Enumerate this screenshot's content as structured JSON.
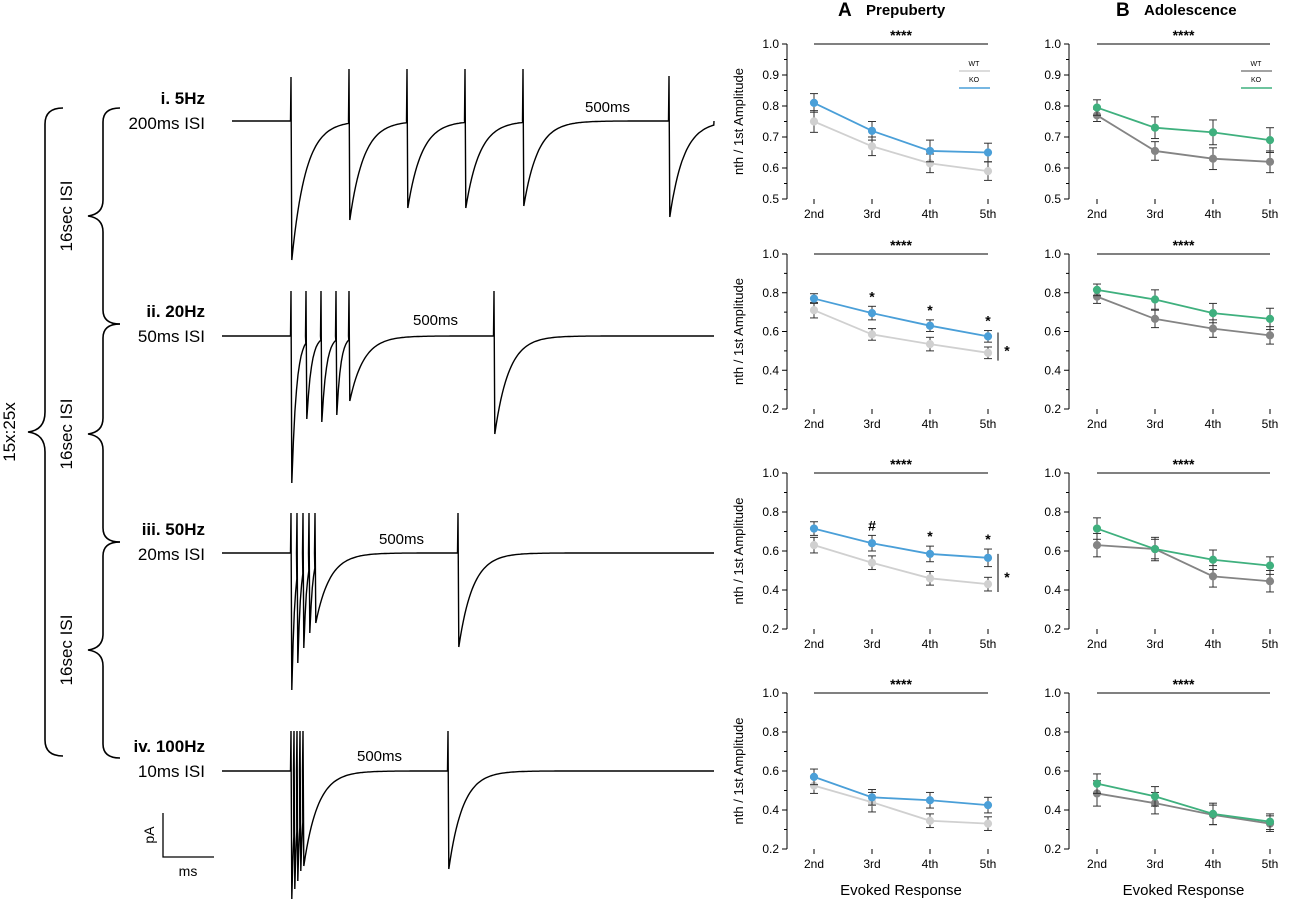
{
  "panels": {
    "A": {
      "letter": "A",
      "title": "Prepuberty"
    },
    "B": {
      "letter": "B",
      "title": "Adolescence"
    }
  },
  "protocol": {
    "outer_label": "15x:25x",
    "isi_labels": [
      "16sec ISI",
      "16sec ISI",
      "16sec ISI"
    ],
    "trains": [
      {
        "name": "i. 5Hz",
        "isi": "200ms ISI",
        "gap_label": "500ms"
      },
      {
        "name": "ii. 20Hz",
        "isi": "50ms ISI",
        "gap_label": "500ms"
      },
      {
        "name": "iii. 50Hz",
        "isi": "20ms ISI",
        "gap_label": "500ms"
      },
      {
        "name": "iv. 100Hz",
        "isi": "10ms ISI",
        "gap_label": "500ms"
      }
    ],
    "scale_bar": {
      "y_label": "pA",
      "x_label": "ms"
    }
  },
  "colors": {
    "wt_A": "#d0d0d0",
    "ko_A": "#4a9fd8",
    "wt_B": "#848484",
    "ko_B": "#3fb07e",
    "sig": "#000000"
  },
  "legend": {
    "wt": "WT",
    "ko": "KO"
  },
  "chart_data": [
    {
      "type": "line",
      "id": "A-5Hz",
      "title": "",
      "xlabel": "",
      "ylabel": "nth / 1st Amplitude",
      "categories": [
        "2nd",
        "3rd",
        "4th",
        "5th"
      ],
      "ylim": [
        0.5,
        1.0
      ],
      "yticks": [
        "0.5",
        "0.6",
        "0.7",
        "0.8",
        "0.9",
        "1.0"
      ],
      "series": [
        {
          "name": "WT",
          "values": [
            0.75,
            0.67,
            0.615,
            0.59
          ],
          "errors": [
            0.035,
            0.03,
            0.03,
            0.03
          ]
        },
        {
          "name": "KO",
          "values": [
            0.81,
            0.72,
            0.655,
            0.65
          ],
          "errors": [
            0.03,
            0.03,
            0.035,
            0.03
          ]
        }
      ],
      "overall_sig": "****",
      "point_sig": [
        "",
        "",
        "",
        ""
      ],
      "group_sig": "",
      "legend": true
    },
    {
      "type": "line",
      "id": "B-5Hz",
      "title": "",
      "xlabel": "",
      "ylabel": "",
      "categories": [
        "2nd",
        "3rd",
        "4th",
        "5th"
      ],
      "ylim": [
        0.5,
        1.0
      ],
      "yticks": [
        "0.5",
        "0.6",
        "0.7",
        "0.8",
        "0.9",
        "1.0"
      ],
      "series": [
        {
          "name": "WT",
          "values": [
            0.77,
            0.655,
            0.63,
            0.62
          ],
          "errors": [
            0.02,
            0.03,
            0.035,
            0.035
          ]
        },
        {
          "name": "KO",
          "values": [
            0.795,
            0.73,
            0.715,
            0.69
          ],
          "errors": [
            0.025,
            0.035,
            0.04,
            0.04
          ]
        }
      ],
      "overall_sig": "****",
      "point_sig": [
        "",
        "",
        "",
        ""
      ],
      "group_sig": "",
      "legend": true
    },
    {
      "type": "line",
      "id": "A-20Hz",
      "title": "",
      "xlabel": "",
      "ylabel": "nth / 1st Amplitude",
      "categories": [
        "2nd",
        "3rd",
        "4th",
        "5th"
      ],
      "ylim": [
        0.2,
        1.0
      ],
      "yticks": [
        "0.2",
        "0.4",
        "0.6",
        "0.8",
        "1.0"
      ],
      "series": [
        {
          "name": "WT",
          "values": [
            0.71,
            0.585,
            0.535,
            0.49
          ],
          "errors": [
            0.04,
            0.03,
            0.035,
            0.03
          ]
        },
        {
          "name": "KO",
          "values": [
            0.77,
            0.695,
            0.63,
            0.575
          ],
          "errors": [
            0.025,
            0.035,
            0.03,
            0.03
          ]
        }
      ],
      "overall_sig": "****",
      "point_sig": [
        "",
        "*",
        "*",
        "*"
      ],
      "group_sig": "*",
      "legend": false
    },
    {
      "type": "line",
      "id": "B-20Hz",
      "title": "",
      "xlabel": "",
      "ylabel": "",
      "categories": [
        "2nd",
        "3rd",
        "4th",
        "5th"
      ],
      "ylim": [
        0.2,
        1.0
      ],
      "yticks": [
        "0.2",
        "0.4",
        "0.6",
        "0.8",
        "1.0"
      ],
      "series": [
        {
          "name": "WT",
          "values": [
            0.78,
            0.665,
            0.615,
            0.58
          ],
          "errors": [
            0.035,
            0.045,
            0.045,
            0.045
          ]
        },
        {
          "name": "KO",
          "values": [
            0.815,
            0.765,
            0.695,
            0.665
          ],
          "errors": [
            0.03,
            0.05,
            0.05,
            0.055
          ]
        }
      ],
      "overall_sig": "****",
      "point_sig": [
        "",
        "",
        "",
        ""
      ],
      "group_sig": "",
      "legend": false
    },
    {
      "type": "line",
      "id": "A-50Hz",
      "title": "",
      "xlabel": "",
      "ylabel": "nth / 1st Amplitude",
      "categories": [
        "2nd",
        "3rd",
        "4th",
        "5th"
      ],
      "ylim": [
        0.2,
        1.0
      ],
      "yticks": [
        "0.2",
        "0.4",
        "0.6",
        "0.8",
        "1.0"
      ],
      "series": [
        {
          "name": "WT",
          "values": [
            0.63,
            0.54,
            0.46,
            0.43
          ],
          "errors": [
            0.04,
            0.035,
            0.035,
            0.035
          ]
        },
        {
          "name": "KO",
          "values": [
            0.715,
            0.64,
            0.585,
            0.565
          ],
          "errors": [
            0.035,
            0.04,
            0.04,
            0.045
          ]
        }
      ],
      "overall_sig": "****",
      "point_sig": [
        "",
        "#",
        "*",
        "*"
      ],
      "group_sig": "*",
      "legend": false
    },
    {
      "type": "line",
      "id": "B-50Hz",
      "title": "",
      "xlabel": "",
      "ylabel": "",
      "categories": [
        "2nd",
        "3rd",
        "4th",
        "5th"
      ],
      "ylim": [
        0.2,
        1.0
      ],
      "yticks": [
        "0.2",
        "0.4",
        "0.6",
        "0.8",
        "1.0"
      ],
      "series": [
        {
          "name": "WT",
          "values": [
            0.63,
            0.61,
            0.47,
            0.445
          ],
          "errors": [
            0.06,
            0.05,
            0.055,
            0.055
          ]
        },
        {
          "name": "KO",
          "values": [
            0.715,
            0.61,
            0.555,
            0.525
          ],
          "errors": [
            0.055,
            0.06,
            0.05,
            0.045
          ]
        }
      ],
      "overall_sig": "****",
      "point_sig": [
        "",
        "",
        "",
        ""
      ],
      "group_sig": "",
      "legend": false
    },
    {
      "type": "line",
      "id": "A-100Hz",
      "title": "",
      "xlabel": "Evoked Response",
      "ylabel": "nth / 1st Amplitude",
      "categories": [
        "2nd",
        "3rd",
        "4th",
        "5th"
      ],
      "ylim": [
        0.2,
        1.0
      ],
      "yticks": [
        "0.2",
        "0.4",
        "0.6",
        "0.8",
        "1.0"
      ],
      "series": [
        {
          "name": "WT",
          "values": [
            0.525,
            0.44,
            0.345,
            0.33
          ],
          "errors": [
            0.04,
            0.05,
            0.035,
            0.035
          ]
        },
        {
          "name": "KO",
          "values": [
            0.57,
            0.465,
            0.45,
            0.425
          ],
          "errors": [
            0.04,
            0.04,
            0.04,
            0.04
          ]
        }
      ],
      "overall_sig": "****",
      "point_sig": [
        "",
        "",
        "",
        ""
      ],
      "group_sig": "",
      "legend": false
    },
    {
      "type": "line",
      "id": "B-100Hz",
      "title": "",
      "xlabel": "Evoked Response",
      "ylabel": "",
      "categories": [
        "2nd",
        "3rd",
        "4th",
        "5th"
      ],
      "ylim": [
        0.2,
        1.0
      ],
      "yticks": [
        "0.2",
        "0.4",
        "0.6",
        "0.8",
        "1.0"
      ],
      "series": [
        {
          "name": "WT",
          "values": [
            0.485,
            0.435,
            0.375,
            0.33
          ],
          "errors": [
            0.065,
            0.055,
            0.05,
            0.04
          ]
        },
        {
          "name": "KO",
          "values": [
            0.535,
            0.47,
            0.38,
            0.34
          ],
          "errors": [
            0.05,
            0.05,
            0.055,
            0.04
          ]
        }
      ],
      "overall_sig": "****",
      "point_sig": [
        "",
        "",
        "",
        ""
      ],
      "group_sig": "",
      "legend": false
    }
  ]
}
